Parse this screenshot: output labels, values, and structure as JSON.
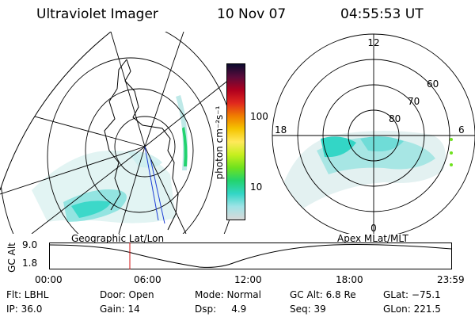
{
  "header": {
    "title": "Ultraviolet Imager",
    "date": "10 Nov 07",
    "time": "04:55:53 UT"
  },
  "colorbar": {
    "unit": "photon cm⁻²s⁻¹",
    "ticks": [
      "100",
      "10"
    ],
    "colors": [
      "#0b0b2e",
      "#5c0b3a",
      "#b0001e",
      "#e0281e",
      "#f07d00",
      "#f5c400",
      "#ffe95a",
      "#c6ef1e",
      "#6fe21e",
      "#22d36e",
      "#33d6c6",
      "#9fe3e6",
      "#d8d8d8"
    ]
  },
  "left_map": {
    "label": "Geographic Lat/Lon"
  },
  "right_map": {
    "label": "Apex MLat/MLT",
    "mlt_labels": [
      "12",
      "18",
      "6",
      "0"
    ],
    "mlat_labels": [
      "60",
      "70",
      "80"
    ]
  },
  "altitude_plot": {
    "ylabel": "GC Alt",
    "y_ticks": [
      "9.0",
      "1.8"
    ],
    "x_ticks": [
      "00:00",
      "06:00",
      "12:00",
      "18:00",
      "23:59"
    ],
    "marker_time": "04:55:53"
  },
  "info": {
    "filter": "Flt: LBHL",
    "ip": "IP: 36.0",
    "door": "Door: Open",
    "gain": "Gain: 14",
    "mode": "Mode: Normal",
    "dsp": "Dsp:     4.9",
    "gc_alt": "GC Alt: 6.8 Re",
    "seq": "Seq: 39",
    "glat": "GLat: −75.1",
    "glon": "GLon: 221.5"
  }
}
